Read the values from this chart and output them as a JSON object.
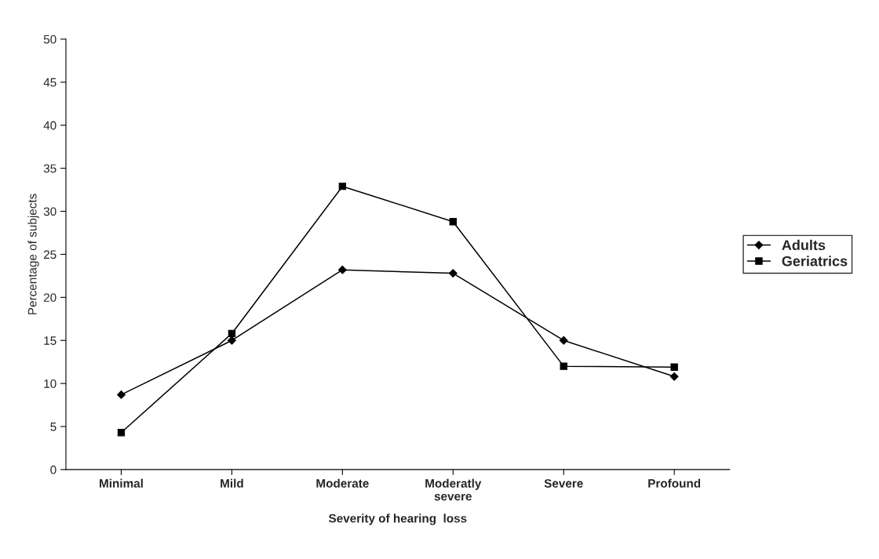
{
  "chart_data": {
    "type": "line",
    "xlabel": "Severity of hearing  loss",
    "ylabel": "Percentage of subjects",
    "categories": [
      "Minimal",
      "Mild",
      "Moderate",
      "Moderatly\nsevere",
      "Severe",
      "Profound"
    ],
    "series": [
      {
        "name": "Adults",
        "color": "#000000",
        "marker": "diamond",
        "values": [
          8.7,
          15.0,
          23.2,
          22.8,
          15.0,
          10.8
        ]
      },
      {
        "name": "Geriatrics",
        "color": "#000000",
        "marker": "square",
        "values": [
          4.3,
          15.8,
          32.9,
          28.8,
          12.0,
          11.9
        ]
      }
    ],
    "ylim": [
      0,
      50
    ],
    "yticks": [
      0,
      5,
      10,
      15,
      20,
      25,
      30,
      35,
      40,
      45,
      50
    ],
    "grid": false,
    "legend": "right",
    "line_style": "solid"
  }
}
